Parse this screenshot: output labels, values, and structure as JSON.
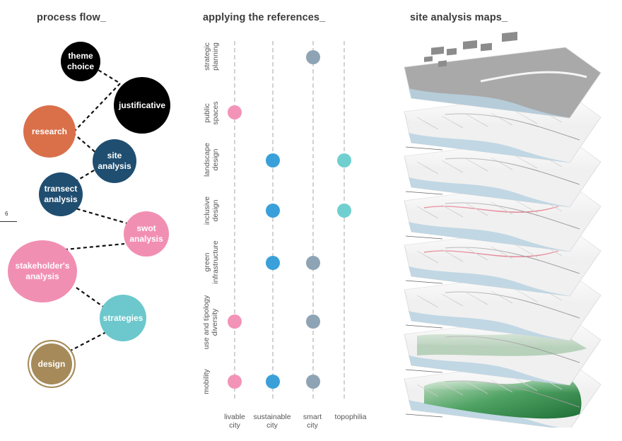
{
  "headings": {
    "process": "process flow_",
    "references": "applying the references_",
    "maps": "site analysis maps_"
  },
  "page_number": "6",
  "process_flow": {
    "nodes": {
      "theme": [
        "theme",
        "choice"
      ],
      "justificative": [
        "justificative"
      ],
      "research": [
        "research"
      ],
      "site": [
        "site",
        "analysis"
      ],
      "transect": [
        "transect",
        "analysis"
      ],
      "swot": [
        "swot",
        "analysis"
      ],
      "stakeholder": [
        "stakeholder's",
        "analysis"
      ],
      "strategies": [
        "strategies"
      ],
      "design": [
        "design"
      ]
    },
    "colors": {
      "black": "#000000",
      "orange": "#d9704a",
      "navy": "#1f4e70",
      "pink": "#f18fb2",
      "teal": "#6cc8cc",
      "gold": "#a68a5a"
    }
  },
  "references_matrix": {
    "rows": [
      [
        "strategic",
        "planning"
      ],
      [
        "public",
        "spaces"
      ],
      [
        "landscape",
        "design"
      ],
      [
        "inclusive",
        "design"
      ],
      [
        "green",
        "infrastructure"
      ],
      [
        "use and tipology",
        "diversity"
      ],
      [
        "mobility"
      ]
    ],
    "columns": [
      [
        "livable",
        "city"
      ],
      [
        "sustainable",
        "city"
      ],
      [
        "smart",
        "city"
      ],
      [
        "topophilia"
      ]
    ],
    "dots": [
      [
        0,
        2
      ],
      [
        1,
        0
      ],
      [
        2,
        1
      ],
      [
        2,
        3
      ],
      [
        3,
        1
      ],
      [
        3,
        3
      ],
      [
        4,
        1
      ],
      [
        4,
        2
      ],
      [
        5,
        0
      ],
      [
        5,
        2
      ],
      [
        6,
        0
      ],
      [
        6,
        1
      ],
      [
        6,
        2
      ]
    ],
    "column_colors": [
      "#f393b8",
      "#3aa0d9",
      "#8ea4b5",
      "#6fd0cf"
    ]
  },
  "site_maps": {
    "layer_count": 8,
    "colors": {
      "top": "#a9a9a9",
      "sea": "#b9d2e2",
      "land": "#f0f0f0",
      "vegetation": "#2f8a4a",
      "route": "#e27a8c"
    }
  }
}
